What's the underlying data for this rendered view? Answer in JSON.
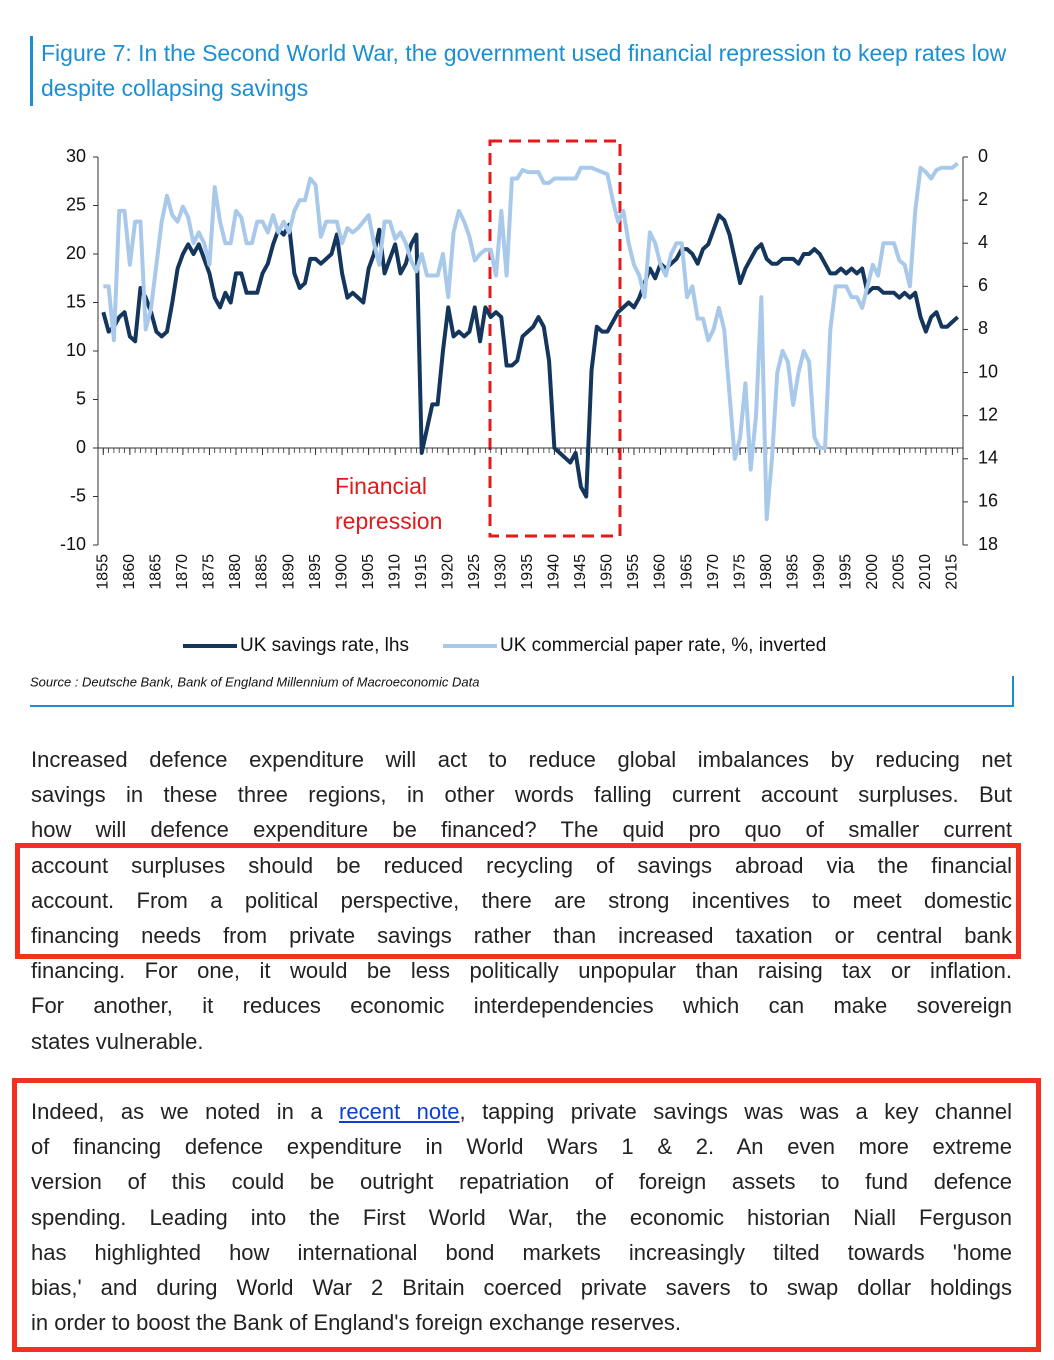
{
  "chart_data": {
    "type": "line",
    "title": "Figure 7: In the Second World War, the government used financial repression to keep rates low despite collapsing savings",
    "x": [
      1855,
      1856,
      1857,
      1858,
      1859,
      1860,
      1861,
      1862,
      1863,
      1864,
      1865,
      1866,
      1867,
      1868,
      1869,
      1870,
      1871,
      1872,
      1873,
      1874,
      1875,
      1876,
      1877,
      1878,
      1879,
      1880,
      1881,
      1882,
      1883,
      1884,
      1885,
      1886,
      1887,
      1888,
      1889,
      1890,
      1891,
      1892,
      1893,
      1894,
      1895,
      1896,
      1897,
      1898,
      1899,
      1900,
      1901,
      1902,
      1903,
      1904,
      1905,
      1906,
      1907,
      1908,
      1909,
      1910,
      1911,
      1912,
      1913,
      1914,
      1915,
      1916,
      1917,
      1918,
      1919,
      1920,
      1921,
      1922,
      1923,
      1924,
      1925,
      1926,
      1927,
      1928,
      1929,
      1930,
      1931,
      1932,
      1933,
      1934,
      1935,
      1936,
      1937,
      1938,
      1939,
      1940,
      1941,
      1942,
      1943,
      1944,
      1945,
      1946,
      1947,
      1948,
      1949,
      1950,
      1951,
      1952,
      1953,
      1954,
      1955,
      1956,
      1957,
      1958,
      1959,
      1960,
      1961,
      1962,
      1963,
      1964,
      1965,
      1966,
      1967,
      1968,
      1969,
      1970,
      1971,
      1972,
      1973,
      1974,
      1975,
      1976,
      1977,
      1978,
      1979,
      1980,
      1981,
      1982,
      1983,
      1984,
      1985,
      1986,
      1987,
      1988,
      1989,
      1990,
      1991,
      1992,
      1993,
      1994,
      1995,
      1996,
      1997,
      1998,
      1999,
      2000,
      2001,
      2002,
      2003,
      2004,
      2005,
      2006,
      2007,
      2008,
      2009,
      2010,
      2011,
      2012,
      2013,
      2014,
      2015,
      2016
    ],
    "series": [
      {
        "name": "UK savings rate, lhs",
        "color": "#14365d",
        "values": [
          14,
          12,
          12.5,
          13.5,
          14,
          11.5,
          11,
          16.5,
          15.5,
          14,
          12,
          11.5,
          12,
          15,
          18.5,
          20,
          21,
          20,
          21,
          19.5,
          18,
          15.5,
          14.5,
          16,
          15,
          18,
          18,
          16,
          16,
          16,
          18,
          19,
          21,
          22.5,
          22,
          23,
          18,
          16.5,
          17,
          19.5,
          19.5,
          19,
          19.5,
          20,
          22,
          18,
          15.5,
          16,
          15.5,
          15,
          18.5,
          20,
          22.5,
          18,
          19.5,
          21,
          18,
          19,
          21,
          22,
          -0.5,
          2,
          4.5,
          4.5,
          10,
          14.5,
          11.5,
          12,
          11.5,
          12,
          14.5,
          11,
          14.5,
          13.5,
          14,
          13.5,
          8.5,
          8.5,
          9,
          11.5,
          12,
          12.5,
          13.5,
          12.5,
          9,
          0,
          -0.5,
          -1,
          -1.5,
          -0.5,
          -4,
          -5,
          8,
          12.5,
          12,
          12,
          13,
          14,
          14.5,
          15,
          14.5,
          15.5,
          17,
          18.5,
          17.5,
          19,
          18.5,
          19,
          19.5,
          20.5,
          20.5,
          20,
          19,
          20.5,
          21,
          22.5,
          24,
          23.5,
          22,
          19.5,
          17,
          18.5,
          19.5,
          20.5,
          21,
          19.5,
          19,
          19,
          19.5,
          19.5,
          19.5,
          19,
          20,
          20,
          20.5,
          20,
          19,
          18,
          18,
          18.5,
          18,
          18.5,
          18,
          18.5,
          16,
          16.5,
          16.5,
          16,
          16,
          16,
          15.5,
          16,
          15.5,
          16,
          13.5,
          12,
          13.5,
          14,
          12.5,
          12.5,
          13,
          13.5
        ]
      },
      {
        "name": "UK commercial paper rate, %, inverted",
        "color": "#a9c9ea",
        "axis": "y2",
        "values": [
          6,
          6,
          8.5,
          2.5,
          2.5,
          5,
          3,
          3,
          8,
          7,
          5,
          3,
          1.8,
          2.7,
          3,
          2.3,
          2.8,
          4,
          3.5,
          4,
          5,
          1.4,
          3,
          4,
          4,
          2.5,
          2.8,
          4,
          4,
          3,
          3,
          3.5,
          2.7,
          3.5,
          3,
          3.5,
          2.5,
          2,
          2,
          1,
          1.3,
          3.7,
          3,
          3,
          3,
          4,
          3.3,
          3.5,
          3.3,
          3,
          2.7,
          4,
          5,
          3,
          3,
          3.8,
          3.5,
          4,
          4.8,
          5.3,
          4.5,
          5.5,
          5.5,
          5.5,
          4.5,
          6.5,
          3.5,
          2.5,
          3,
          3.7,
          4.8,
          4.5,
          4.3,
          4.3,
          5.5,
          2.5,
          5.5,
          1,
          1,
          0.6,
          0.7,
          0.7,
          0.7,
          1.2,
          1.2,
          1,
          1,
          1,
          1,
          1,
          0.5,
          0.5,
          0.5,
          0.6,
          0.7,
          0.8,
          2,
          3,
          2.5,
          4,
          5,
          5.5,
          6.5,
          3.5,
          4,
          5,
          5.5,
          4.5,
          4,
          4,
          6.5,
          6,
          7.5,
          7.5,
          8.5,
          8,
          7,
          8,
          11,
          14,
          13,
          10.5,
          14.5,
          12,
          6.5,
          16.8,
          14,
          10,
          9,
          9.5,
          11.5,
          10,
          9,
          9.5,
          13,
          13.5,
          13.5,
          8,
          6,
          6,
          6,
          6.5,
          6.5,
          7,
          6,
          5,
          5.5,
          4,
          4,
          4,
          4.8,
          5,
          6,
          2.5,
          0.5,
          0.7,
          1,
          0.6,
          0.5,
          0.5,
          0.5,
          0.3
        ]
      }
    ],
    "xlim": [
      1854,
      2017
    ],
    "xticks": [
      1855,
      1860,
      1865,
      1870,
      1875,
      1880,
      1885,
      1890,
      1895,
      1900,
      1905,
      1910,
      1915,
      1920,
      1925,
      1930,
      1935,
      1940,
      1945,
      1950,
      1955,
      1960,
      1965,
      1970,
      1975,
      1980,
      1985,
      1990,
      1995,
      2000,
      2005,
      2010,
      2015
    ],
    "ylim": [
      -10,
      30
    ],
    "yticks": [
      -10,
      -5,
      0,
      5,
      10,
      15,
      20,
      25,
      30
    ],
    "y2lim": [
      18,
      0
    ],
    "y2ticks": [
      0,
      2,
      4,
      6,
      8,
      10,
      12,
      14,
      16,
      18
    ],
    "annotation": "Financial repression",
    "source": "Source : Deutsche Bank, Bank of England Millennium of Macroeconomic Data"
  },
  "body": {
    "paragraphs": [
      {
        "lines": [
          "Increased defence expenditure will act to reduce global imbalances by reducing net",
          "savings in these three regions, in other words falling current account surpluses. But",
          "how will defence expenditure be financed? The quid pro quo of smaller current",
          "account surpluses should be reduced recycling of savings abroad via the financial",
          "account. From a political perspective, there are strong incentives to meet domestic",
          "financing needs from private savings rather than increased taxation or central bank",
          "financing. For one, it would be less politically unpopular than raising tax or inflation.",
          "For another, it reduces economic interdependencies which can make sovereign",
          "states vulnerable."
        ]
      },
      {
        "lines": [
          [
            "Indeed, as we noted in a ",
            "recent note",
            ", tapping private savings was was a key channel"
          ],
          "of financing defence expenditure in World Wars 1 & 2. An even more extreme",
          "version of this could be outright repatriation of foreign assets to fund defence",
          "spending. Leading into the First World War, the economic historian Niall Ferguson",
          "has highlighted how international bond markets increasingly tilted towards 'home",
          "bias,' and during World War 2 Britain coerced private savers to swap dollar holdings",
          "in order to boost the Bank of England's foreign exchange reserves."
        ]
      }
    ]
  }
}
